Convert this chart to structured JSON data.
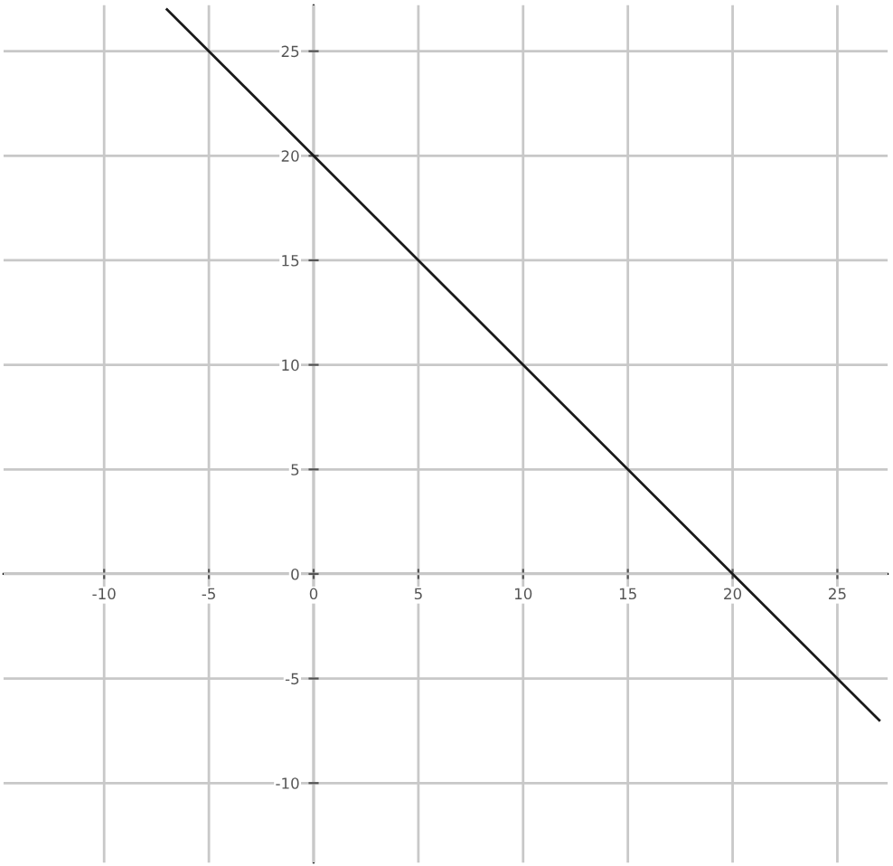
{
  "chart_data": {
    "type": "line",
    "x": [
      -7,
      27
    ],
    "series": [
      {
        "color": "#1a1a1a",
        "values": [
          27,
          -7
        ]
      }
    ],
    "xlim": [
      -14.8,
      27.4
    ],
    "ylim": [
      -13.8,
      27.2
    ],
    "xticks": [
      -10,
      -5,
      0,
      5,
      10,
      15,
      20,
      25
    ],
    "yticks": [
      -10,
      -5,
      0,
      5,
      10,
      15,
      20,
      25
    ],
    "grid": true,
    "marker": "none",
    "line_style": "solid"
  }
}
